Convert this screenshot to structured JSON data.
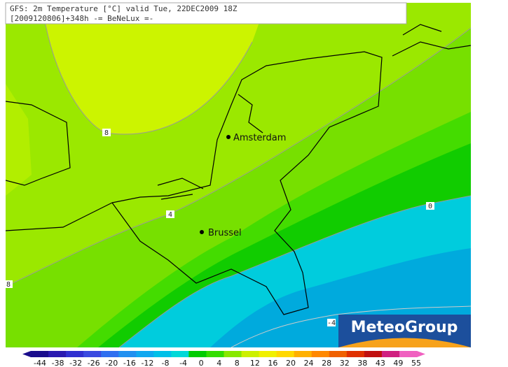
{
  "header": {
    "title": "GFS: 2m Temperature [°C] valid Tue, 22DEC2009 18Z",
    "subtitle": "[2009120806]+348h -= BeNeLux =-"
  },
  "contour_labels": [
    8,
    4,
    0,
    -4,
    8
  ],
  "cities": [
    "Amsterdam",
    "Brussel"
  ],
  "logo": "MeteoGroup",
  "colorbar": {
    "ticks": [
      -44,
      -38,
      -32,
      -26,
      -20,
      -16,
      -12,
      -8,
      -4,
      0,
      4,
      8,
      12,
      16,
      20,
      24,
      28,
      32,
      38,
      43,
      49,
      55
    ],
    "colors": [
      "#1a0d8c",
      "#2a1ab0",
      "#3030d0",
      "#3a4ae0",
      "#2f6ff0",
      "#2090f0",
      "#10a8f0",
      "#00c0e8",
      "#00d8d8",
      "#00cc00",
      "#33dd00",
      "#88e800",
      "#ccf000",
      "#f0f000",
      "#ffd800",
      "#ffb000",
      "#ff8800",
      "#f06000",
      "#e03000",
      "#c01010",
      "#d02080",
      "#f060c0"
    ]
  }
}
